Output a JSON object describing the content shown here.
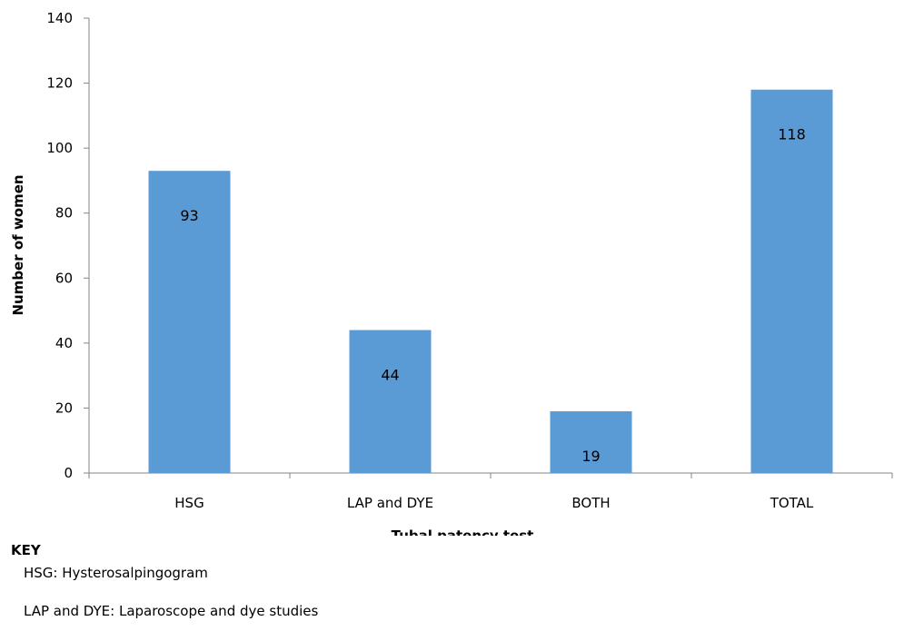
{
  "chart_data": {
    "type": "bar",
    "categories": [
      "HSG",
      "LAP and DYE",
      "BOTH",
      "TOTAL"
    ],
    "values": [
      93,
      44,
      19,
      118
    ],
    "xlabel": "Tubal patency test",
    "ylabel": "Number of women",
    "ylim": [
      0,
      140
    ],
    "yticks": [
      0,
      20,
      40,
      60,
      80,
      100,
      120,
      140
    ],
    "bar_color": "#5B9BD5",
    "grid": false,
    "data_labels": true
  },
  "key": {
    "title": "KEY",
    "items": [
      "HSG: Hysterosalpingogram",
      "LAP and DYE: Laparoscope and dye studies"
    ]
  }
}
